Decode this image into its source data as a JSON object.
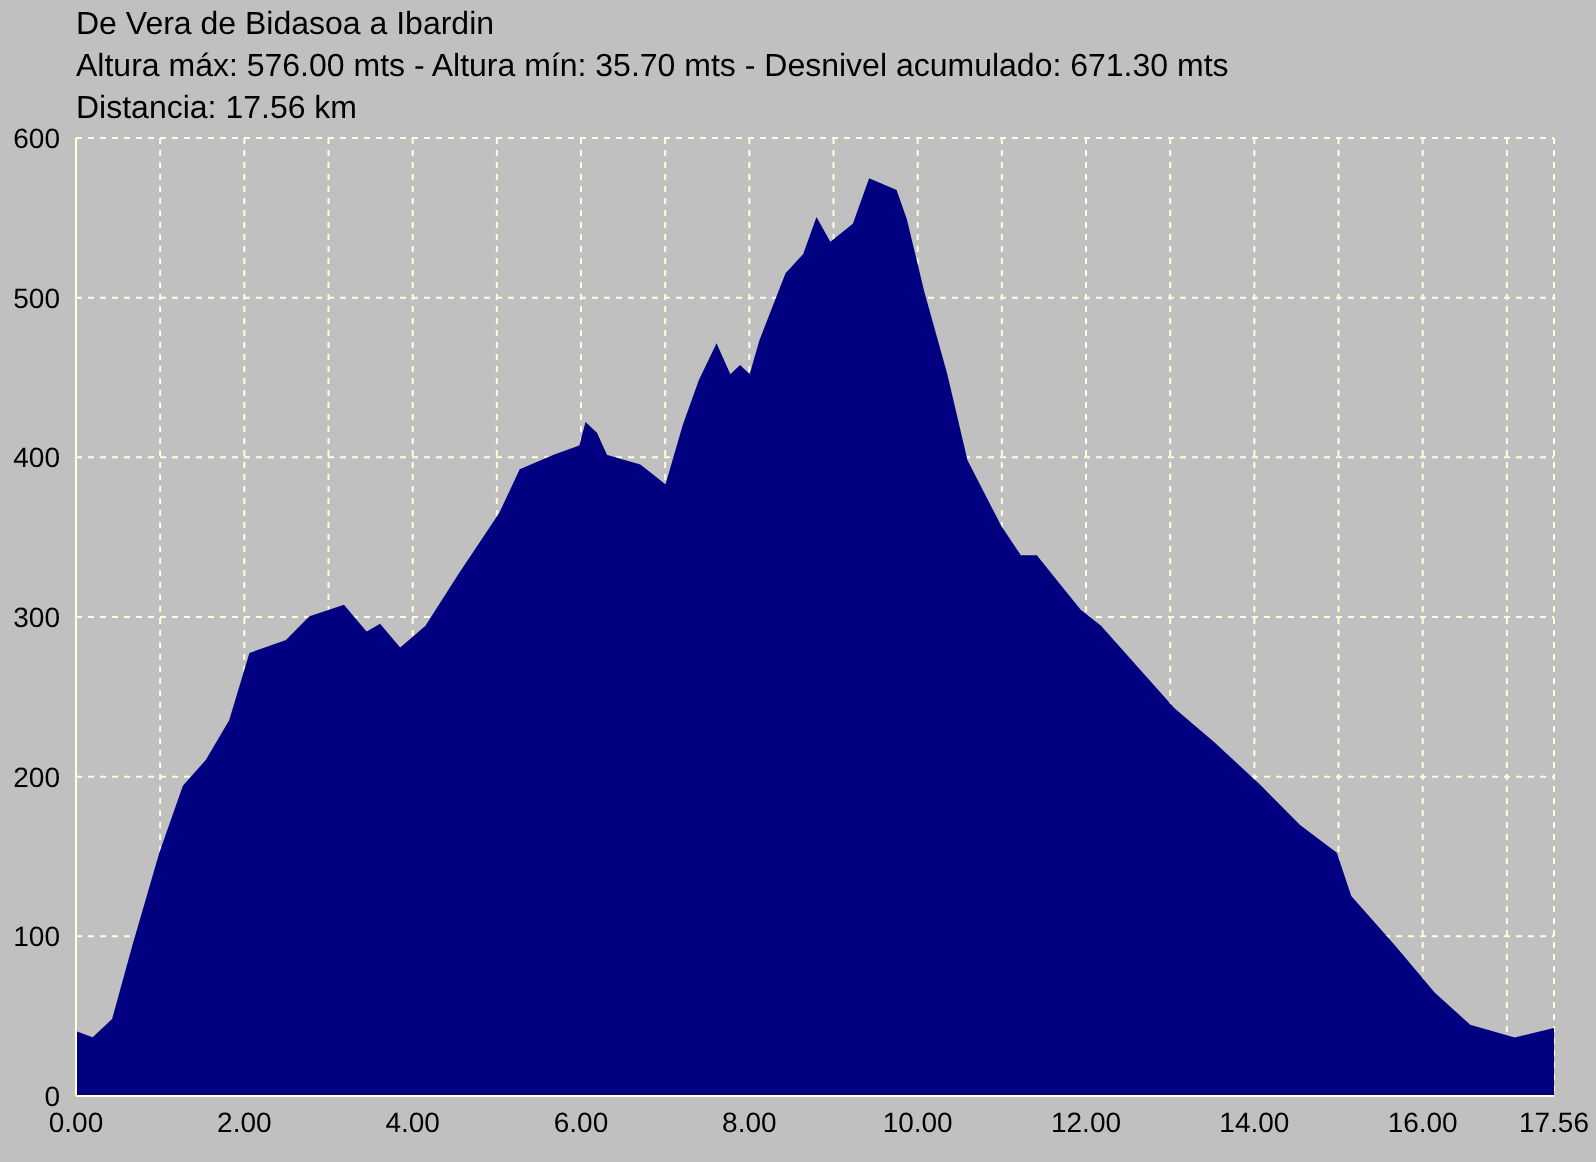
{
  "chart_data": {
    "type": "area",
    "title": "De Vera de Bidasoa a Ibardin",
    "subtitle": "Altura máx: 576.00 mts - Altura mín: 35.70 mts - Desnivel acumulado: 671.30 mts",
    "annotations": [
      "Distancia: 17.56 km"
    ],
    "x": [
      0,
      0.2,
      0.44,
      0.68,
      1.0,
      1.28,
      1.55,
      1.83,
      2.07,
      2.5,
      2.78,
      3.18,
      3.45,
      3.61,
      3.85,
      4.16,
      4.56,
      5.04,
      5.28,
      5.68,
      5.99,
      6.06,
      6.18,
      6.3,
      6.7,
      7.01,
      7.22,
      7.41,
      7.61,
      7.77,
      7.89,
      8.01,
      8.13,
      8.44,
      8.65,
      8.8,
      8.96,
      9.24,
      9.43,
      9.74,
      9.86,
      10.07,
      10.34,
      10.58,
      10.98,
      11.22,
      11.41,
      11.64,
      11.93,
      12.17,
      13.05,
      13.52,
      14.07,
      14.54,
      14.97,
      15.14,
      15.66,
      16.14,
      16.56,
      17.09,
      17.56
    ],
    "values": [
      40,
      36,
      48,
      94,
      152,
      194,
      210,
      235,
      277,
      285,
      300,
      307,
      290,
      295,
      280,
      294,
      327,
      365,
      392,
      401,
      407,
      421,
      415,
      401,
      395,
      382,
      420,
      448,
      470,
      451,
      457,
      451,
      473,
      515,
      527,
      549,
      534,
      546,
      574,
      567,
      549,
      503,
      452,
      398,
      357,
      338,
      338,
      323,
      304,
      294,
      242,
      221,
      194,
      169,
      152,
      125,
      94,
      64,
      44,
      36,
      42
    ],
    "color": "#000080",
    "xlim": [
      0,
      17.56
    ],
    "ylim": [
      0,
      600
    ],
    "xticks": [
      {
        "value": 0,
        "label": "0.00"
      },
      {
        "value": 1,
        "label": null
      },
      {
        "value": 2,
        "label": "2.00"
      },
      {
        "value": 3,
        "label": null
      },
      {
        "value": 4,
        "label": "4.00"
      },
      {
        "value": 5,
        "label": null
      },
      {
        "value": 6,
        "label": "6.00"
      },
      {
        "value": 7,
        "label": null
      },
      {
        "value": 8,
        "label": "8.00"
      },
      {
        "value": 9,
        "label": null
      },
      {
        "value": 10,
        "label": "10.00"
      },
      {
        "value": 11,
        "label": null
      },
      {
        "value": 12,
        "label": "12.00"
      },
      {
        "value": 13,
        "label": null
      },
      {
        "value": 14,
        "label": "14.00"
      },
      {
        "value": 15,
        "label": null
      },
      {
        "value": 16,
        "label": "16.00"
      },
      {
        "value": 17,
        "label": null
      },
      {
        "value": 17.56,
        "label": "17.56"
      }
    ],
    "yticks": [
      0,
      100,
      200,
      300,
      400,
      500,
      600
    ],
    "grid": true
  }
}
